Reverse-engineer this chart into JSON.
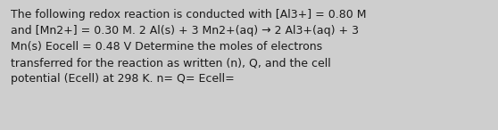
{
  "text": "The following redox reaction is conducted with [Al3+] = 0.80 M\nand [Mn2+] = 0.30 M. 2 Al(s) + 3 Mn2+(aq) → 2 Al3+(aq) + 3\nMn(s) Eocell = 0.48 V Determine the moles of electrons\ntransferred for the reaction as written (n), Q, and the cell\npotential (Ecell) at 298 K. n= Q= Ecell=",
  "background_color": "#cecece",
  "text_color": "#1a1a1a",
  "font_size": 9.0,
  "fig_width": 5.58,
  "fig_height": 1.46,
  "dpi": 100
}
